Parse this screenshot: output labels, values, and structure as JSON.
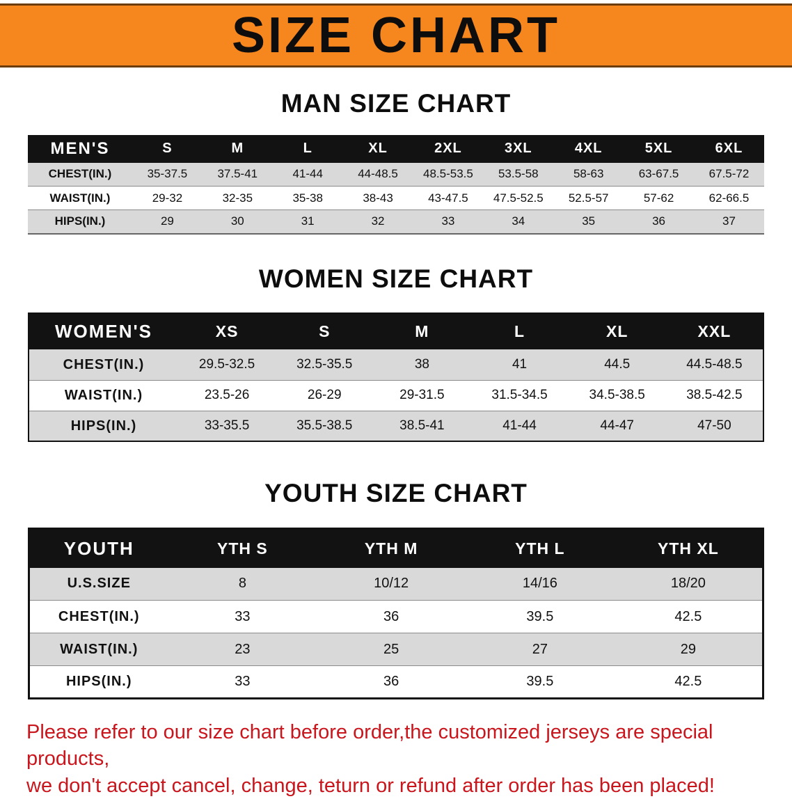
{
  "banner": {
    "title": "SIZE CHART"
  },
  "colors": {
    "banner_orange": "#F6861E",
    "table_header_black": "#121212",
    "row_gray": "#D9D9D9",
    "disclaimer_red": "#C9161D"
  },
  "sections": [
    {
      "id": "men",
      "heading": "MAN SIZE CHART",
      "table": {
        "header": {
          "label": "MEN'S",
          "cols": [
            "S",
            "M",
            "L",
            "XL",
            "2XL",
            "3XL",
            "4XL",
            "5XL",
            "6XL"
          ]
        },
        "rows": [
          {
            "label": "CHEST(IN.)",
            "values": [
              "35-37.5",
              "37.5-41",
              "41-44",
              "44-48.5",
              "48.5-53.5",
              "53.5-58",
              "58-63",
              "63-67.5",
              "67.5-72"
            ]
          },
          {
            "label": "WAIST(IN.)",
            "values": [
              "29-32",
              "32-35",
              "35-38",
              "38-43",
              "43-47.5",
              "47.5-52.5",
              "52.5-57",
              "57-62",
              "62-66.5"
            ]
          },
          {
            "label": "HIPS(IN.)",
            "values": [
              "29",
              "30",
              "31",
              "32",
              "33",
              "34",
              "35",
              "36",
              "37"
            ]
          }
        ]
      }
    },
    {
      "id": "women",
      "heading": "WOMEN SIZE CHART",
      "table": {
        "header": {
          "label": "WOMEN'S",
          "cols": [
            "XS",
            "S",
            "M",
            "L",
            "XL",
            "XXL"
          ]
        },
        "rows": [
          {
            "label": "CHEST(IN.)",
            "values": [
              "29.5-32.5",
              "32.5-35.5",
              "38",
              "41",
              "44.5",
              "44.5-48.5"
            ]
          },
          {
            "label": "WAIST(IN.)",
            "values": [
              "23.5-26",
              "26-29",
              "29-31.5",
              "31.5-34.5",
              "34.5-38.5",
              "38.5-42.5"
            ]
          },
          {
            "label": "HIPS(IN.)",
            "values": [
              "33-35.5",
              "35.5-38.5",
              "38.5-41",
              "41-44",
              "44-47",
              "47-50"
            ]
          }
        ]
      }
    },
    {
      "id": "youth",
      "heading": "YOUTH SIZE CHART",
      "table": {
        "header": {
          "label": "YOUTH",
          "cols": [
            "YTH S",
            "YTH M",
            "YTH L",
            "YTH XL"
          ]
        },
        "rows": [
          {
            "label": "U.S.SIZE",
            "values": [
              "8",
              "10/12",
              "14/16",
              "18/20"
            ]
          },
          {
            "label": "CHEST(IN.)",
            "values": [
              "33",
              "36",
              "39.5",
              "42.5"
            ]
          },
          {
            "label": "WAIST(IN.)",
            "values": [
              "23",
              "25",
              "27",
              "29"
            ]
          },
          {
            "label": "HIPS(IN.)",
            "values": [
              "33",
              "36",
              "39.5",
              "42.5"
            ]
          }
        ]
      }
    }
  ],
  "disclaimer": {
    "line1": "Please refer to our size chart before order,the customized jerseys are special products,",
    "line2": "we don't accept cancel, change, teturn or refund after order has been placed!"
  }
}
